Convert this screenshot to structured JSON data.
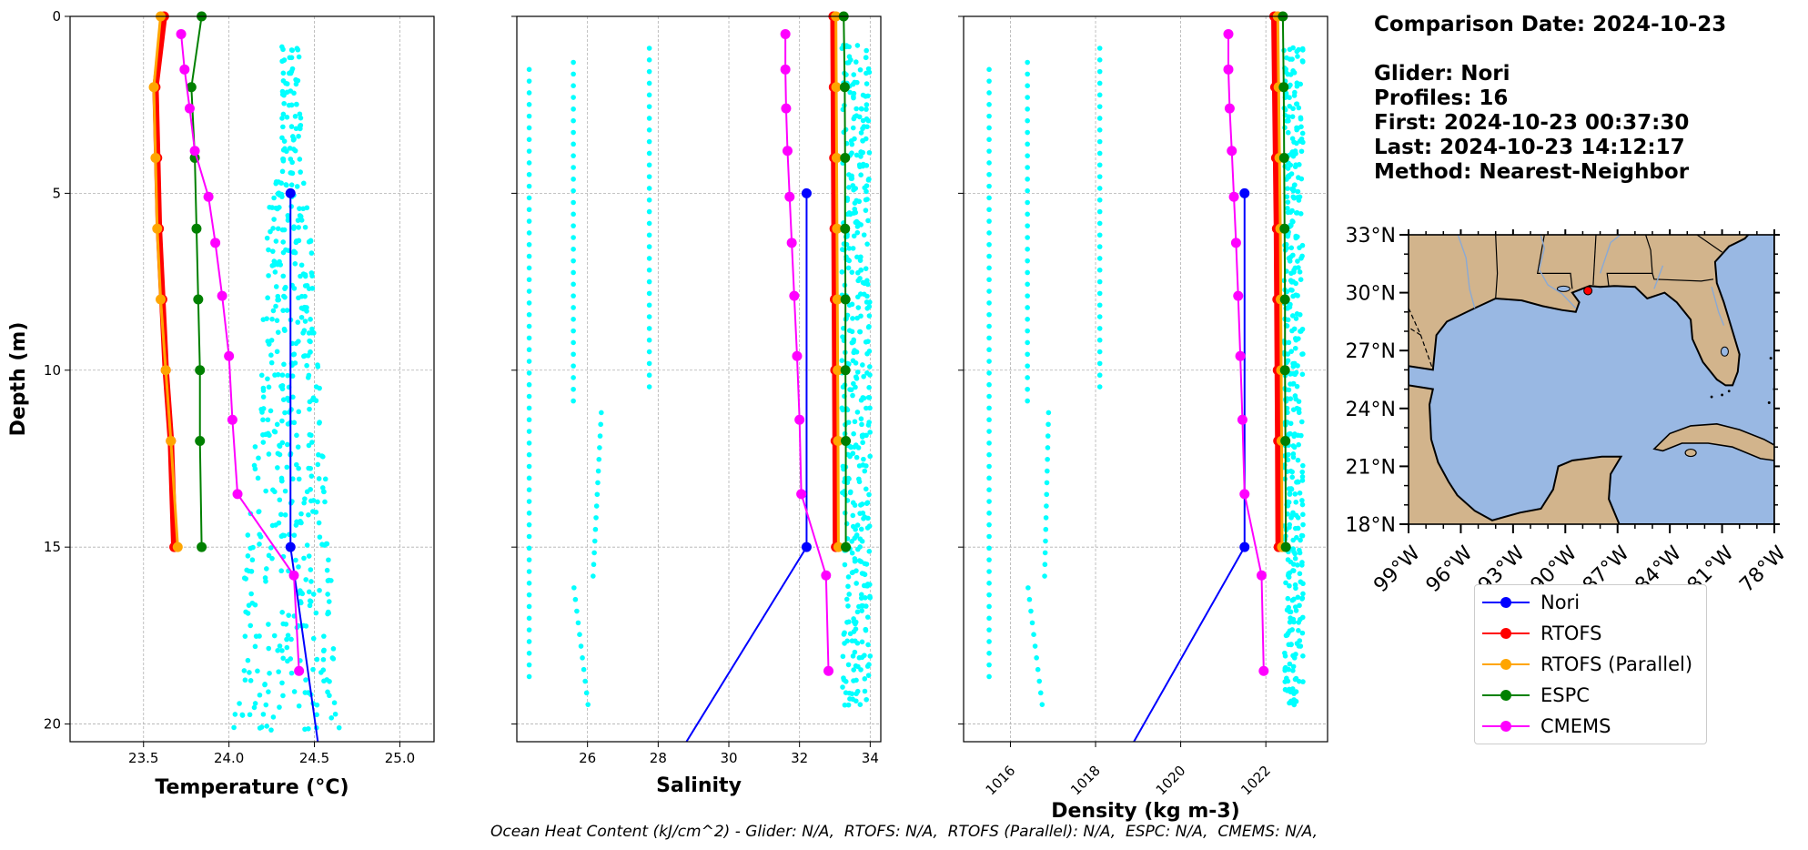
{
  "info": {
    "comparison_date": "Comparison Date: 2024-10-23",
    "glider": "Glider: Nori",
    "profiles": "Profiles: 16",
    "first": "First: 2024-10-23 00:37:30",
    "last": "Last: 2024-10-23 14:12:17",
    "method": "Method: Nearest-Neighbor"
  },
  "legend": [
    {
      "name": "Nori",
      "color": "#0000ff"
    },
    {
      "name": "RTOFS",
      "color": "#ff0000"
    },
    {
      "name": "RTOFS (Parallel)",
      "color": "#ffa500"
    },
    {
      "name": "ESPC",
      "color": "#008000"
    },
    {
      "name": "CMEMS",
      "color": "#ff00ff"
    }
  ],
  "ohc_caption": "Ocean Heat Content (kJ/cm^2) - Glider: N/A,  RTOFS: N/A,  RTOFS (Parallel): N/A,  ESPC: N/A,  CMEMS: N/A,",
  "chart_data": [
    {
      "type": "line",
      "xlabel": "Temperature (°C)",
      "ylabel": "Depth (m)",
      "xlim": [
        23.07,
        25.2
      ],
      "ylim": [
        20.5,
        0
      ],
      "xticks": [
        "23.5",
        "24.0",
        "24.5",
        "25.0"
      ],
      "yticks": [
        "0",
        "5",
        "10",
        "15",
        "20"
      ],
      "grid": true,
      "series": [
        {
          "name": "Nori",
          "color": "#0000ff",
          "points": [
            [
              24.36,
              5.0
            ],
            [
              24.36,
              15.0
            ],
            [
              24.52,
              20.5
            ]
          ]
        },
        {
          "name": "RTOFS",
          "color": "#ff0000",
          "points": [
            [
              23.62,
              0.0
            ],
            [
              23.57,
              2.0
            ],
            [
              23.58,
              4.0
            ],
            [
              23.59,
              6.0
            ],
            [
              23.61,
              8.0
            ],
            [
              23.63,
              10.0
            ],
            [
              23.66,
              12.0
            ],
            [
              23.68,
              15.0
            ]
          ]
        },
        {
          "name": "RTOFS (Parallel)",
          "color": "#ffa500",
          "points": [
            [
              23.6,
              0.0
            ],
            [
              23.56,
              2.0
            ],
            [
              23.57,
              4.0
            ],
            [
              23.58,
              6.0
            ],
            [
              23.6,
              8.0
            ],
            [
              23.63,
              10.0
            ],
            [
              23.66,
              12.0
            ],
            [
              23.7,
              15.0
            ]
          ]
        },
        {
          "name": "ESPC",
          "color": "#008000",
          "points": [
            [
              23.84,
              0.0
            ],
            [
              23.78,
              2.0
            ],
            [
              23.8,
              4.0
            ],
            [
              23.81,
              6.0
            ],
            [
              23.82,
              8.0
            ],
            [
              23.83,
              10.0
            ],
            [
              23.83,
              12.0
            ],
            [
              23.84,
              15.0
            ]
          ]
        },
        {
          "name": "CMEMS",
          "color": "#ff00ff",
          "points": [
            [
              23.72,
              0.5
            ],
            [
              23.74,
              1.5
            ],
            [
              23.77,
              2.6
            ],
            [
              23.8,
              3.8
            ],
            [
              23.88,
              5.1
            ],
            [
              23.92,
              6.4
            ],
            [
              23.96,
              7.9
            ],
            [
              24.0,
              9.6
            ],
            [
              24.02,
              11.4
            ],
            [
              24.05,
              13.5
            ],
            [
              24.38,
              15.8
            ],
            [
              24.41,
              18.5
            ]
          ]
        }
      ]
    },
    {
      "type": "line",
      "xlabel": "Salinity",
      "xlim": [
        24.0,
        34.3
      ],
      "ylim": [
        20.5,
        0
      ],
      "xticks": [
        "26",
        "28",
        "30",
        "32",
        "34"
      ],
      "grid": true,
      "series": [
        {
          "name": "Nori",
          "color": "#0000ff",
          "points": [
            [
              32.2,
              5.0
            ],
            [
              32.2,
              15.0
            ],
            [
              28.8,
              20.5
            ]
          ]
        },
        {
          "name": "RTOFS",
          "color": "#ff0000",
          "points": [
            [
              32.96,
              0.0
            ],
            [
              32.97,
              2.0
            ],
            [
              32.98,
              4.0
            ],
            [
              32.99,
              6.0
            ],
            [
              33.0,
              8.0
            ],
            [
              33.01,
              10.0
            ],
            [
              33.02,
              12.0
            ],
            [
              33.03,
              15.0
            ]
          ]
        },
        {
          "name": "RTOFS (Parallel)",
          "color": "#ffa500",
          "points": [
            [
              33.03,
              0.0
            ],
            [
              33.04,
              2.0
            ],
            [
              33.05,
              4.0
            ],
            [
              33.06,
              6.0
            ],
            [
              33.07,
              8.0
            ],
            [
              33.08,
              10.0
            ],
            [
              33.09,
              12.0
            ],
            [
              33.1,
              15.0
            ]
          ]
        },
        {
          "name": "ESPC",
          "color": "#008000",
          "points": [
            [
              33.25,
              0.0
            ],
            [
              33.28,
              2.0
            ],
            [
              33.29,
              4.0
            ],
            [
              33.29,
              6.0
            ],
            [
              33.3,
              8.0
            ],
            [
              33.3,
              10.0
            ],
            [
              33.31,
              12.0
            ],
            [
              33.31,
              15.0
            ]
          ]
        },
        {
          "name": "CMEMS",
          "color": "#ff00ff",
          "points": [
            [
              31.6,
              0.5
            ],
            [
              31.6,
              1.5
            ],
            [
              31.62,
              2.6
            ],
            [
              31.66,
              3.8
            ],
            [
              31.72,
              5.1
            ],
            [
              31.78,
              6.4
            ],
            [
              31.85,
              7.9
            ],
            [
              31.93,
              9.6
            ],
            [
              32.0,
              11.4
            ],
            [
              32.05,
              13.5
            ],
            [
              32.75,
              15.8
            ],
            [
              32.82,
              18.5
            ]
          ]
        }
      ]
    },
    {
      "type": "line",
      "xlabel": "Density (kg m-3)",
      "xlim": [
        1014.9,
        1023.45
      ],
      "ylim": [
        20.5,
        0
      ],
      "xticks": [
        "1016",
        "1018",
        "1020",
        "1022"
      ],
      "grid": true,
      "series": [
        {
          "name": "Nori",
          "color": "#0000ff",
          "points": [
            [
              1021.5,
              5.0
            ],
            [
              1021.5,
              15.0
            ],
            [
              1018.9,
              20.5
            ]
          ]
        },
        {
          "name": "RTOFS",
          "color": "#ff0000",
          "points": [
            [
              1022.2,
              0.0
            ],
            [
              1022.22,
              2.0
            ],
            [
              1022.24,
              4.0
            ],
            [
              1022.26,
              6.0
            ],
            [
              1022.27,
              8.0
            ],
            [
              1022.28,
              10.0
            ],
            [
              1022.29,
              12.0
            ],
            [
              1022.3,
              15.0
            ]
          ]
        },
        {
          "name": "RTOFS (Parallel)",
          "color": "#ffa500",
          "points": [
            [
              1022.28,
              0.0
            ],
            [
              1022.3,
              2.0
            ],
            [
              1022.32,
              4.0
            ],
            [
              1022.34,
              6.0
            ],
            [
              1022.35,
              8.0
            ],
            [
              1022.36,
              10.0
            ],
            [
              1022.37,
              12.0
            ],
            [
              1022.38,
              15.0
            ]
          ]
        },
        {
          "name": "ESPC",
          "color": "#008000",
          "points": [
            [
              1022.4,
              0.0
            ],
            [
              1022.42,
              2.0
            ],
            [
              1022.43,
              4.0
            ],
            [
              1022.44,
              6.0
            ],
            [
              1022.45,
              8.0
            ],
            [
              1022.45,
              10.0
            ],
            [
              1022.46,
              12.0
            ],
            [
              1022.47,
              15.0
            ]
          ]
        },
        {
          "name": "CMEMS",
          "color": "#ff00ff",
          "points": [
            [
              1021.12,
              0.5
            ],
            [
              1021.12,
              1.5
            ],
            [
              1021.15,
              2.6
            ],
            [
              1021.2,
              3.8
            ],
            [
              1021.25,
              5.1
            ],
            [
              1021.3,
              6.4
            ],
            [
              1021.35,
              7.9
            ],
            [
              1021.4,
              9.6
            ],
            [
              1021.45,
              11.4
            ],
            [
              1021.5,
              13.5
            ],
            [
              1021.9,
              15.8
            ],
            [
              1021.95,
              18.5
            ]
          ]
        }
      ]
    },
    {
      "type": "map",
      "lon_range": [
        -99,
        -78
      ],
      "lat_range": [
        18,
        33
      ],
      "xticks": [
        "99°W",
        "96°W",
        "93°W",
        "90°W",
        "87°W",
        "84°W",
        "81°W",
        "78°W"
      ],
      "yticks": [
        "18°N",
        "21°N",
        "24°N",
        "27°N",
        "30°N",
        "33°N"
      ],
      "marker": {
        "lon": -88.7,
        "lat": 30.1,
        "color": "#ff0000"
      },
      "land_color": "#d2b48c",
      "water_color": "#99b8e3"
    }
  ]
}
